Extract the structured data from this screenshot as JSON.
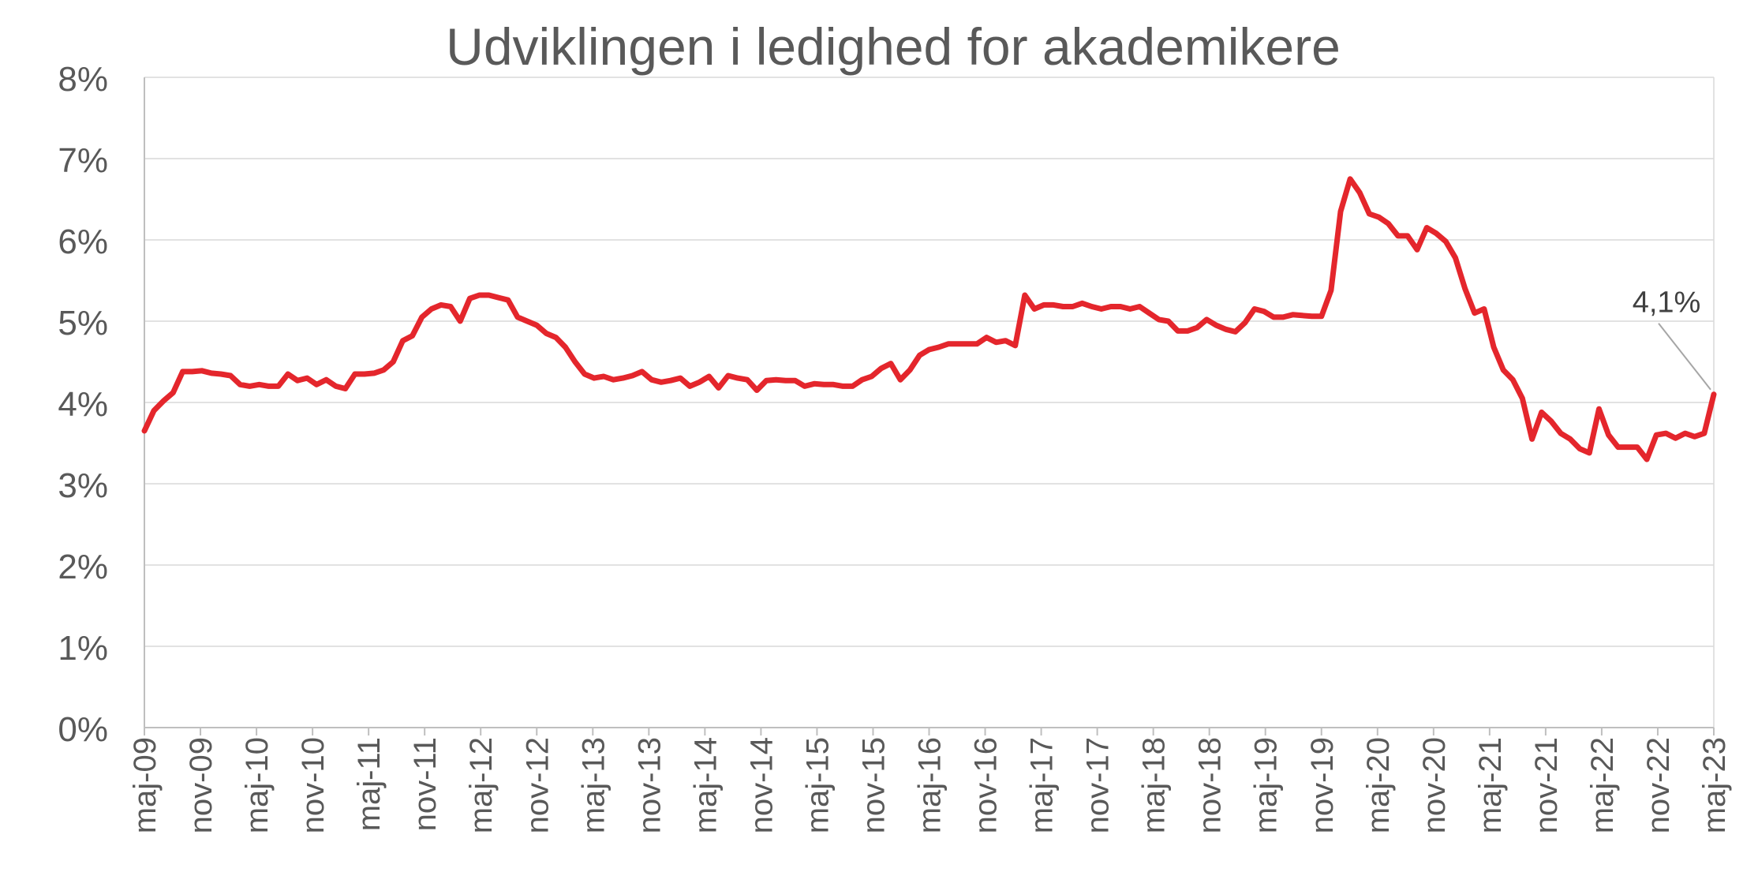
{
  "chart_data": {
    "type": "line",
    "title": "Udviklingen i ledighed for akademikere",
    "xlabel": "",
    "ylabel": "",
    "ylim": [
      0,
      8
    ],
    "yticks": [
      "0%",
      "1%",
      "2%",
      "3%",
      "4%",
      "5%",
      "6%",
      "7%",
      "8%"
    ],
    "xtick_labels": [
      "maj-09",
      "nov-09",
      "maj-10",
      "nov-10",
      "maj-11",
      "nov-11",
      "maj-12",
      "nov-12",
      "maj-13",
      "nov-13",
      "maj-14",
      "nov-14",
      "maj-15",
      "nov-15",
      "maj-16",
      "nov-16",
      "maj-17",
      "nov-17",
      "maj-18",
      "nov-18",
      "maj-19",
      "nov-19",
      "maj-20",
      "nov-20",
      "maj-21",
      "nov-21",
      "maj-22",
      "nov-22",
      "maj-23"
    ],
    "grid": true,
    "legend": "none",
    "series": [
      {
        "color": "#e4262c",
        "values": [
          3.65,
          3.9,
          4.02,
          4.12,
          4.38,
          4.38,
          4.39,
          4.36,
          4.35,
          4.33,
          4.22,
          4.2,
          4.22,
          4.2,
          4.2,
          4.35,
          4.27,
          4.3,
          4.22,
          4.28,
          4.2,
          4.17,
          4.35,
          4.35,
          4.36,
          4.4,
          4.5,
          4.76,
          4.82,
          5.05,
          5.15,
          5.2,
          5.18,
          5.0,
          5.28,
          5.32,
          5.32,
          5.29,
          5.26,
          5.05,
          5.0,
          4.95,
          4.85,
          4.8,
          4.68,
          4.5,
          4.35,
          4.3,
          4.32,
          4.28,
          4.3,
          4.33,
          4.38,
          4.28,
          4.25,
          4.27,
          4.3,
          4.2,
          4.25,
          4.32,
          4.18,
          4.33,
          4.3,
          4.28,
          4.15,
          4.27,
          4.28,
          4.27,
          4.27,
          4.2,
          4.23,
          4.22,
          4.22,
          4.2,
          4.2,
          4.28,
          4.32,
          4.42,
          4.48,
          4.28,
          4.4,
          4.58,
          4.65,
          4.68,
          4.72,
          4.72,
          4.72,
          4.72,
          4.8,
          4.74,
          4.76,
          4.7,
          5.32,
          5.15,
          5.2,
          5.2,
          5.18,
          5.18,
          5.22,
          5.18,
          5.15,
          5.18,
          5.18,
          5.15,
          5.18,
          5.1,
          5.02,
          5.0,
          4.88,
          4.88,
          4.92,
          5.02,
          4.95,
          4.9,
          4.87,
          4.98,
          5.15,
          5.12,
          5.05,
          5.05,
          5.08,
          5.07,
          5.06,
          5.06,
          5.38,
          6.35,
          6.75,
          6.58,
          6.32,
          6.28,
          6.2,
          6.05,
          6.05,
          5.88,
          6.15,
          6.08,
          5.98,
          5.78,
          5.4,
          5.1,
          5.15,
          4.68,
          4.4,
          4.28,
          4.05,
          3.55,
          3.88,
          3.77,
          3.62,
          3.55,
          3.43,
          3.38,
          3.92,
          3.6,
          3.45,
          3.45,
          3.45,
          3.3,
          3.6,
          3.62,
          3.56,
          3.62,
          3.58,
          3.62,
          4.1
        ]
      }
    ],
    "annotations": [
      {
        "text": "4,1%",
        "target": "last-point"
      }
    ]
  }
}
